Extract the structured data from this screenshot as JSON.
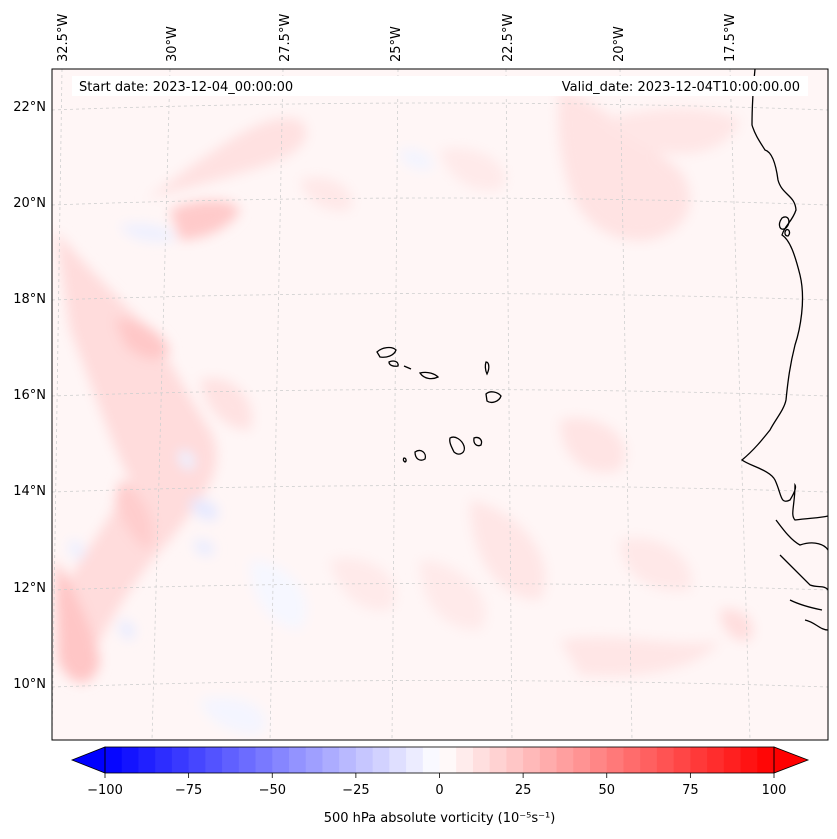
{
  "header": {
    "start_date": "Start date: 2023-12-04_00:00:00",
    "valid_date": "Valid_date: 2023-12-04T10:00:00.00"
  },
  "axes": {
    "lon_labels": [
      "32.5°W",
      "30°W",
      "27.5°W",
      "25°W",
      "22.5°W",
      "20°W",
      "17.5°W"
    ],
    "lat_labels": [
      "22°N",
      "20°N",
      "18°N",
      "16°N",
      "14°N",
      "12°N",
      "10°N"
    ]
  },
  "colorbar": {
    "label": "500 hPa absolute vorticity (10⁻⁵s⁻¹)",
    "tick_labels": [
      "−100",
      "−75",
      "−50",
      "−25",
      "0",
      "25",
      "50",
      "75",
      "100"
    ],
    "min": -100,
    "max": 100,
    "low_color": "#0000ff",
    "mid_color": "#ffffff",
    "high_color": "#ff0000"
  },
  "colors": {
    "background_field": "#fff6f6",
    "grid": "#cfcfcf",
    "coast": "#000000"
  }
}
